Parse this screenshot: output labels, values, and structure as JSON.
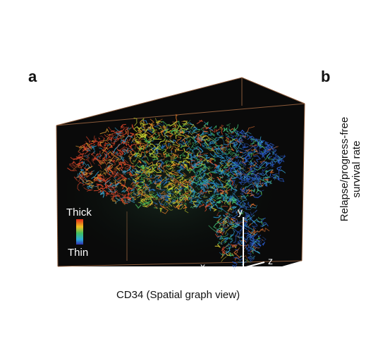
{
  "panels": {
    "a": {
      "letter": "a"
    },
    "b": {
      "letter": "b",
      "ylabel_line1": "Relapse/progress-free",
      "ylabel_line2": "survival rate"
    }
  },
  "figure": {
    "caption": "CD34 (Spatial graph view)",
    "colorbar": {
      "top_label": "Thick",
      "bottom_label": "Thin"
    },
    "axes": {
      "x": "x",
      "y": "y",
      "z": "z"
    },
    "colors": {
      "background": "#0a0a0a",
      "box_edge": "#8a5a3a",
      "thick": "#e03020",
      "mid": "#d8d020",
      "thin": "#2840c8"
    }
  }
}
